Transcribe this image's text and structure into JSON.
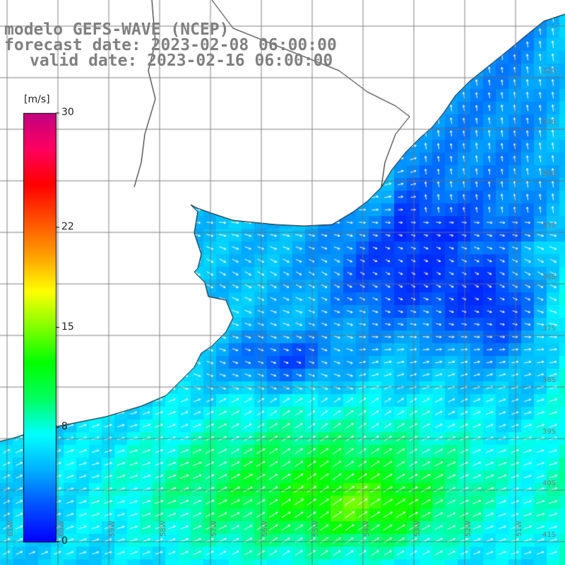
{
  "header": {
    "model_line": "modelo GEFS-WAVE (NCEP)",
    "forecast_line": "forecast date: 2023-02-08 06:00:00",
    "valid_line": "valid date: 2023-02-16 06:00:00"
  },
  "colorbar": {
    "unit": "[m/s]",
    "ticks": [
      "30",
      "22",
      "15",
      "8",
      "0"
    ],
    "tick_values": [
      30,
      22,
      15,
      8,
      0
    ],
    "colors": [
      "#0000ff",
      "#0050ff",
      "#00b0ff",
      "#00ffff",
      "#00ff60",
      "#00ff00",
      "#80ff00",
      "#ffff00",
      "#ffa000",
      "#ff5000",
      "#ff0000",
      "#ff0060",
      "#c00080"
    ]
  },
  "grid": {
    "lat_labels": [
      "32S",
      "33S",
      "34S",
      "35S",
      "36S",
      "37S",
      "38S",
      "39S",
      "40S",
      "41S"
    ],
    "lon_labels": [
      "61W",
      "60W",
      "59W",
      "58W",
      "57W",
      "56W",
      "55W",
      "54W",
      "53W",
      "52W",
      "51W"
    ]
  },
  "field": {
    "variable": "wind speed and direction",
    "low_speed_region": "Rio de la Plata outer shelf and offshore (blue, ~2-5 m/s)",
    "high_speed_region": "southern shelf (green, ~9-13 m/s)"
  }
}
